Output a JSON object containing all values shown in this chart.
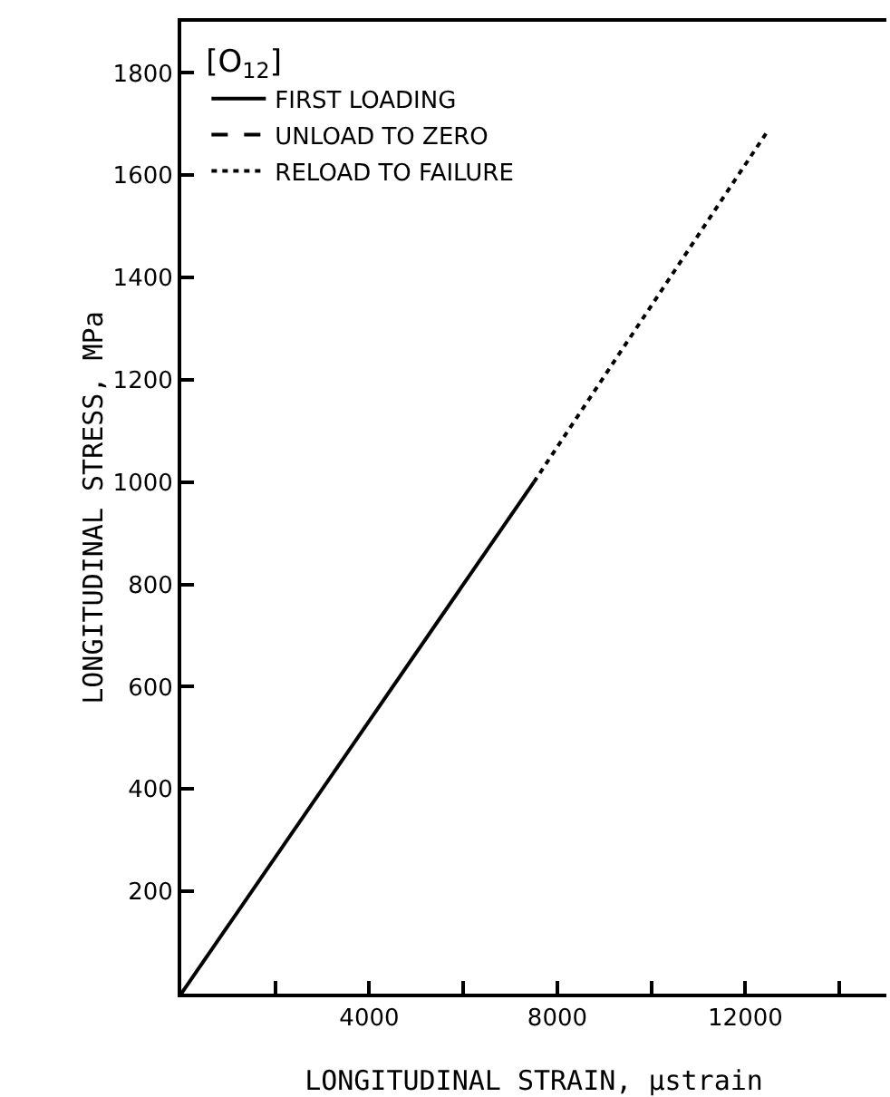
{
  "chart_data": {
    "type": "line",
    "xlabel": "LONGITUDINAL STRAIN, μstrain",
    "ylabel": "LONGITUDINAL STRESS, MPa",
    "legend_title": "[O$_{12}$]",
    "legend": "top left",
    "grid": false,
    "marker": "none",
    "xlim": [
      0,
      15000
    ],
    "ylim": [
      0,
      1900
    ],
    "xticks": [
      {
        "value": 2000,
        "label": null
      },
      4000,
      {
        "value": 6000,
        "label": null
      },
      8000,
      {
        "value": 10000,
        "label": null
      },
      12000,
      {
        "value": 14000,
        "label": null
      }
    ],
    "yticks": [
      200,
      400,
      600,
      800,
      1000,
      1200,
      1400,
      1600,
      1800
    ],
    "series": [
      {
        "name": "FIRST LOADING",
        "color": "#000000",
        "line_style": "solid",
        "x": [
          0,
          7500
        ],
        "values": [
          0,
          1000
        ]
      },
      {
        "name": "UNLOAD TO ZERO",
        "color": "#000000",
        "line_style": "dashed",
        "x": [
          null,
          null
        ],
        "values": [
          null,
          null
        ]
      },
      {
        "name": "RELOAD TO FAILURE",
        "color": "#000000",
        "line_style": "dotted",
        "x": [
          7500,
          12500
        ],
        "values": [
          1000,
          1690
        ]
      }
    ]
  }
}
